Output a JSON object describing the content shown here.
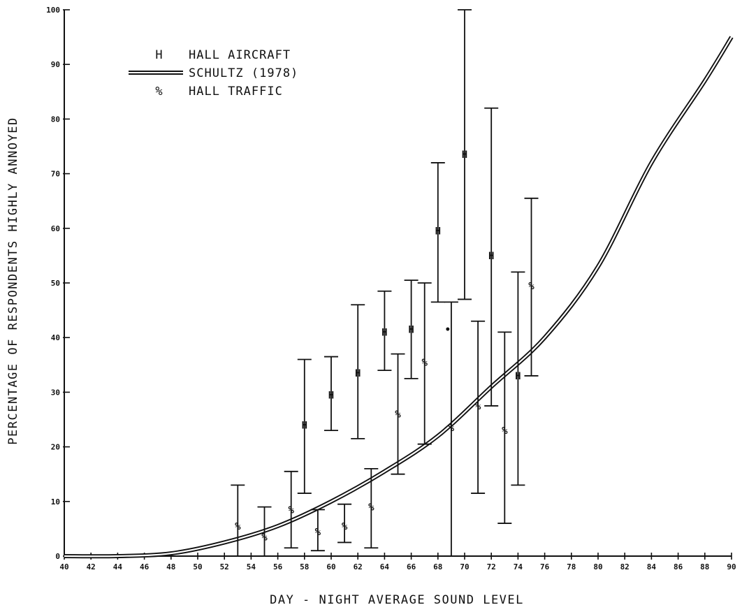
{
  "chart_data": {
    "type": "scatter",
    "title": "",
    "xlabel": "DAY - NIGHT AVERAGE SOUND LEVEL",
    "ylabel": "PERCENTAGE OF RESPONDENTS HIGHLY ANNOYED",
    "xlim": [
      40,
      90
    ],
    "ylim": [
      0,
      100
    ],
    "x_ticks": [
      40,
      42,
      44,
      46,
      48,
      50,
      52,
      54,
      56,
      58,
      60,
      62,
      64,
      66,
      68,
      70,
      72,
      74,
      76,
      78,
      80,
      82,
      84,
      86,
      88,
      90
    ],
    "y_ticks": [
      0,
      10,
      20,
      30,
      40,
      50,
      60,
      70,
      80,
      90,
      100
    ],
    "grid": false,
    "legend_position": "top-left",
    "legend": [
      {
        "marker": "H",
        "label": "HALL AIRCRAFT"
      },
      {
        "marker": "",
        "label": "SCHULTZ (1978)"
      },
      {
        "marker": "%",
        "label": "HALL TRAFFIC"
      }
    ],
    "series": [
      {
        "name": "HALL AIRCRAFT",
        "marker": "H",
        "points": [
          {
            "x": 58,
            "y": 24,
            "low": 11.5,
            "high": 36
          },
          {
            "x": 60,
            "y": 29.5,
            "low": 23,
            "high": 36.5
          },
          {
            "x": 62,
            "y": 33.5,
            "low": 21.5,
            "high": 46
          },
          {
            "x": 64,
            "y": 41,
            "low": 34,
            "high": 48.5
          },
          {
            "x": 66,
            "y": 41.5,
            "low": 32.5,
            "high": 50.5
          },
          {
            "x": 68,
            "y": 59.5,
            "low": 46.5,
            "high": 72
          },
          {
            "x": 70,
            "y": 73.5,
            "low": 47,
            "high": 100
          },
          {
            "x": 72,
            "y": 55,
            "low": 27.5,
            "high": 82
          },
          {
            "x": 74,
            "y": 33,
            "low": 13,
            "high": 52
          }
        ]
      },
      {
        "name": "HALL TRAFFIC",
        "marker": "%",
        "points": [
          {
            "x": 53,
            "y": 5.5,
            "low": 0,
            "high": 13
          },
          {
            "x": 55,
            "y": 3.5,
            "low": 0,
            "high": 9
          },
          {
            "x": 57,
            "y": 8.5,
            "low": 1.5,
            "high": 15.5
          },
          {
            "x": 59,
            "y": 4.5,
            "low": 1,
            "high": 8.5
          },
          {
            "x": 61,
            "y": 5.5,
            "low": 2.5,
            "high": 9.5
          },
          {
            "x": 63,
            "y": 9,
            "low": 1.5,
            "high": 16
          },
          {
            "x": 65,
            "y": 26,
            "low": 15,
            "high": 37
          },
          {
            "x": 67,
            "y": 35.5,
            "low": 20.5,
            "high": 50
          },
          {
            "x": 69,
            "y": 23.5,
            "low": 0,
            "high": 46.5
          },
          {
            "x": 71,
            "y": 27.5,
            "low": 11.5,
            "high": 43
          },
          {
            "x": 73,
            "y": 23,
            "low": 6,
            "high": 41
          },
          {
            "x": 75,
            "y": 49.5,
            "low": 33,
            "high": 65.5
          }
        ]
      },
      {
        "name": "SCHULTZ (1978)",
        "type": "line",
        "x": [
          40,
          44,
          48,
          52,
          56,
          60,
          64,
          68,
          72,
          76,
          80,
          84,
          88,
          90
        ],
        "values": [
          0,
          0,
          0.5,
          2.5,
          5.5,
          10,
          15.5,
          22,
          31,
          40,
          53,
          72,
          87,
          95
        ]
      }
    ],
    "annotations": [
      {
        "x": 68,
        "y": 41.5,
        "label": "•"
      }
    ]
  }
}
